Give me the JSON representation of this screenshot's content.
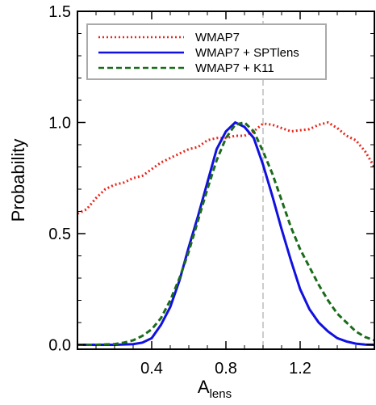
{
  "chart_data": {
    "type": "line",
    "xlabel": "A",
    "xlabel_subscript": "lens",
    "ylabel": "Probability",
    "xlim": [
      0.0,
      1.6
    ],
    "ylim": [
      -0.02,
      1.5
    ],
    "xticks": [
      {
        "value": 0.4,
        "label": "0.4"
      },
      {
        "value": 0.8,
        "label": "0.8"
      },
      {
        "value": 1.2,
        "label": "1.2"
      }
    ],
    "yticks": [
      {
        "value": 0.0,
        "label": "0.0"
      },
      {
        "value": 0.5,
        "label": "0.5"
      },
      {
        "value": 1.0,
        "label": "1.0"
      },
      {
        "value": 1.5,
        "label": "1.5"
      }
    ],
    "reference_line": {
      "x": 1.0,
      "color": "#bbbbbb"
    },
    "legend_position": "top-left",
    "series": [
      {
        "name": "WMAP7",
        "color": "#e8261c",
        "style": "dotted",
        "x": [
          0.0,
          0.05,
          0.1,
          0.15,
          0.2,
          0.25,
          0.3,
          0.35,
          0.4,
          0.45,
          0.5,
          0.55,
          0.6,
          0.65,
          0.7,
          0.75,
          0.8,
          0.85,
          0.9,
          0.95,
          1.0,
          1.05,
          1.1,
          1.15,
          1.2,
          1.25,
          1.3,
          1.35,
          1.4,
          1.45,
          1.5,
          1.55,
          1.6
        ],
        "y": [
          0.59,
          0.61,
          0.66,
          0.7,
          0.72,
          0.73,
          0.75,
          0.76,
          0.79,
          0.82,
          0.84,
          0.86,
          0.88,
          0.89,
          0.92,
          0.93,
          0.93,
          0.94,
          0.94,
          0.96,
          0.995,
          0.99,
          0.975,
          0.96,
          0.965,
          0.97,
          0.99,
          1.0,
          0.975,
          0.94,
          0.92,
          0.87,
          0.8
        ]
      },
      {
        "name": "WMAP7 + SPTlens",
        "color": "#1010e0",
        "style": "solid",
        "x": [
          0.0,
          0.1,
          0.2,
          0.3,
          0.35,
          0.4,
          0.45,
          0.5,
          0.55,
          0.6,
          0.65,
          0.7,
          0.75,
          0.8,
          0.85,
          0.9,
          0.95,
          1.0,
          1.05,
          1.1,
          1.15,
          1.2,
          1.25,
          1.3,
          1.35,
          1.4,
          1.45,
          1.5,
          1.55,
          1.6
        ],
        "y": [
          0.0,
          0.0,
          0.0,
          0.003,
          0.01,
          0.03,
          0.09,
          0.17,
          0.29,
          0.44,
          0.58,
          0.73,
          0.88,
          0.96,
          1.0,
          0.98,
          0.93,
          0.81,
          0.67,
          0.52,
          0.38,
          0.25,
          0.16,
          0.1,
          0.06,
          0.03,
          0.015,
          0.005,
          0.001,
          0.0
        ]
      },
      {
        "name": "WMAP7 + K11",
        "color": "#1a6b1a",
        "style": "dashed",
        "x": [
          0.0,
          0.1,
          0.2,
          0.25,
          0.3,
          0.35,
          0.4,
          0.45,
          0.5,
          0.55,
          0.6,
          0.65,
          0.7,
          0.75,
          0.8,
          0.85,
          0.9,
          0.95,
          1.0,
          1.05,
          1.1,
          1.15,
          1.2,
          1.25,
          1.3,
          1.35,
          1.4,
          1.45,
          1.5,
          1.55,
          1.6
        ],
        "y": [
          0.0,
          0.0,
          0.003,
          0.01,
          0.02,
          0.04,
          0.07,
          0.12,
          0.2,
          0.3,
          0.42,
          0.56,
          0.7,
          0.83,
          0.93,
          0.99,
          1.0,
          0.96,
          0.87,
          0.77,
          0.65,
          0.53,
          0.43,
          0.35,
          0.27,
          0.2,
          0.14,
          0.1,
          0.06,
          0.035,
          0.02
        ]
      }
    ]
  }
}
